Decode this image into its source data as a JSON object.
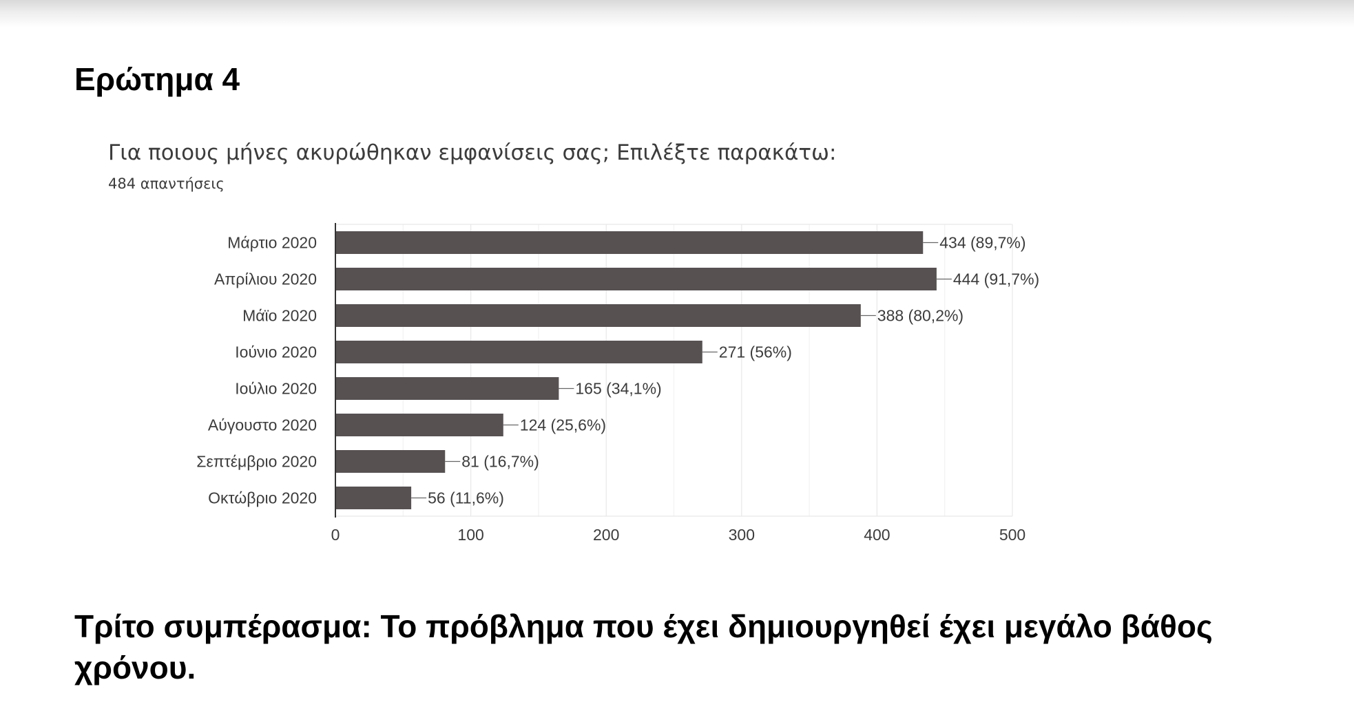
{
  "section_heading": "Ερώτημα 4",
  "question": {
    "title": "Για ποιους μήνες ακυρώθηκαν εμφανίσεις σας; Επιλέξτε παρακάτω:",
    "responses": "484 απαντήσεις"
  },
  "chart_data": {
    "type": "bar",
    "orientation": "horizontal",
    "categories": [
      "Μάρτιο 2020",
      "Απρίλιου 2020",
      "Μάϊο 2020",
      "Ιούνιο 2020",
      "Ιούλιο 2020",
      "Αύγουστο 2020",
      "Σεπτέμβριο 2020",
      "Οκτώβριο 2020"
    ],
    "values": [
      434,
      444,
      388,
      271,
      165,
      124,
      81,
      56
    ],
    "data_labels": [
      "434 (89,7%)",
      "444 (91,7%)",
      "388 (80,2%)",
      "271 (56%)",
      "165 (34,1%)",
      "124 (25,6%)",
      "81 (16,7%)",
      "56 (11,6%)"
    ],
    "title": "Για ποιους μήνες ακυρώθηκαν εμφανίσεις σας; Επιλέξτε παρακάτω:",
    "subtitle": "484 απαντήσεις",
    "xlim": [
      0,
      500
    ],
    "x_ticks": [
      0,
      100,
      200,
      300,
      400,
      500
    ],
    "grid": true,
    "bar_color": "#575152",
    "label_color": "#3c3c3c",
    "grid_color": "#e8e8e8"
  },
  "conclusion": "Τρίτο συμπέρασμα: Το πρόβλημα που έχει δημιουργηθεί έχει μεγάλο βάθος χρόνου."
}
